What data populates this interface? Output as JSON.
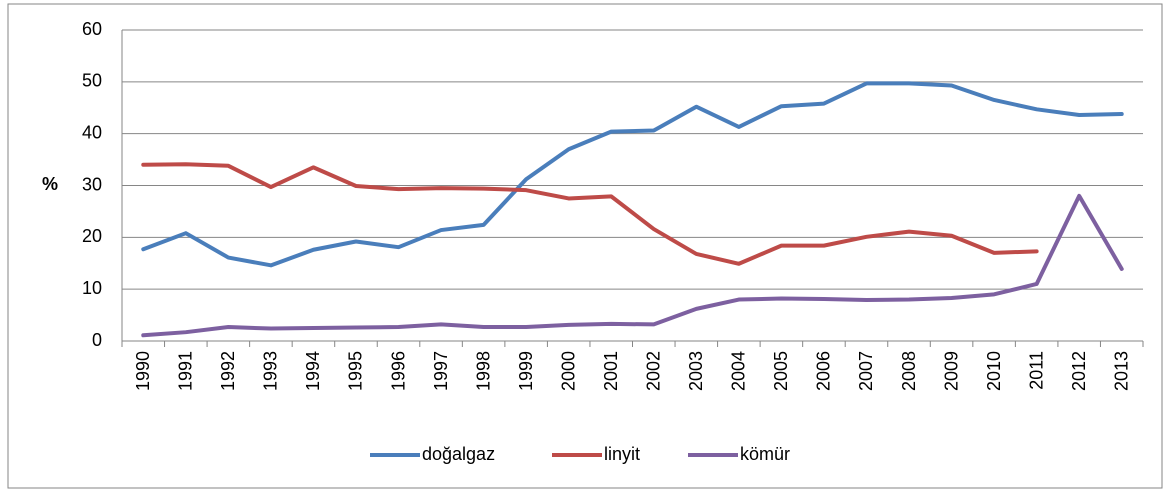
{
  "chart_data": {
    "type": "line",
    "y_label": "%",
    "categories": [
      "1990",
      "1991",
      "1992",
      "1993",
      "1994",
      "1995",
      "1996",
      "1997",
      "1998",
      "1999",
      "2000",
      "2001",
      "2002",
      "2003",
      "2004",
      "2005",
      "2006",
      "2007",
      "2008",
      "2009",
      "2010",
      "2011",
      "2012",
      "2013"
    ],
    "series": [
      {
        "name": "doğalgaz",
        "color": "#4a7ebb",
        "values": [
          17.7,
          20.8,
          16.1,
          14.6,
          17.6,
          19.2,
          18.1,
          21.4,
          22.4,
          31.2,
          37.0,
          40.4,
          40.6,
          45.2,
          41.3,
          45.3,
          45.8,
          49.7,
          49.7,
          49.3,
          46.5,
          44.7,
          43.6,
          43.8
        ]
      },
      {
        "name": "linyit",
        "color": "#be4b48",
        "values": [
          34.0,
          34.1,
          33.8,
          29.7,
          33.5,
          29.9,
          29.3,
          29.5,
          29.4,
          29.1,
          27.5,
          27.9,
          21.6,
          16.8,
          14.9,
          18.4,
          18.4,
          20.1,
          21.1,
          20.3,
          17.0,
          17.3,
          null,
          null
        ]
      },
      {
        "name": "kömür",
        "color": "#7d60a0",
        "values": [
          1.1,
          1.7,
          2.7,
          2.4,
          2.5,
          2.6,
          2.7,
          3.2,
          2.7,
          2.7,
          3.1,
          3.3,
          3.2,
          6.2,
          8.0,
          8.2,
          8.1,
          7.9,
          8.0,
          8.3,
          9.0,
          11.0,
          28.0,
          13.9
        ]
      }
    ],
    "ylim": [
      0,
      60
    ],
    "yticks": [
      0,
      10,
      20,
      30,
      40,
      50,
      60
    ],
    "grid": true,
    "legend": "bottom"
  }
}
